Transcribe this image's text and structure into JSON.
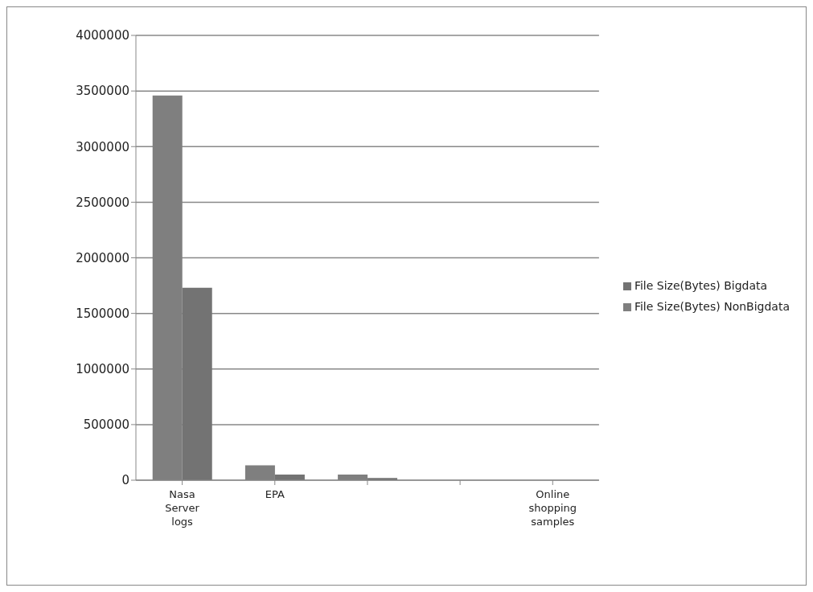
{
  "chart_data": {
    "type": "bar",
    "categories": [
      "Nasa Server logs",
      "EPA",
      null,
      null,
      "Online shopping samples"
    ],
    "series": [
      {
        "name": "File Size(Bytes) NonBigdata",
        "color": "#7f7f7f",
        "values": [
          3460000,
          133000,
          51000,
          0,
          0
        ]
      },
      {
        "name": "File Size(Bytes) Bigdata",
        "color": "#737373",
        "values": [
          1730000,
          51000,
          20000,
          0,
          0
        ]
      }
    ],
    "ylim": [
      0,
      4000000
    ],
    "yticks": [
      0,
      500000,
      1000000,
      1500000,
      2000000,
      2500000,
      3000000,
      3500000,
      4000000
    ],
    "grid": "y",
    "legend": "right"
  }
}
